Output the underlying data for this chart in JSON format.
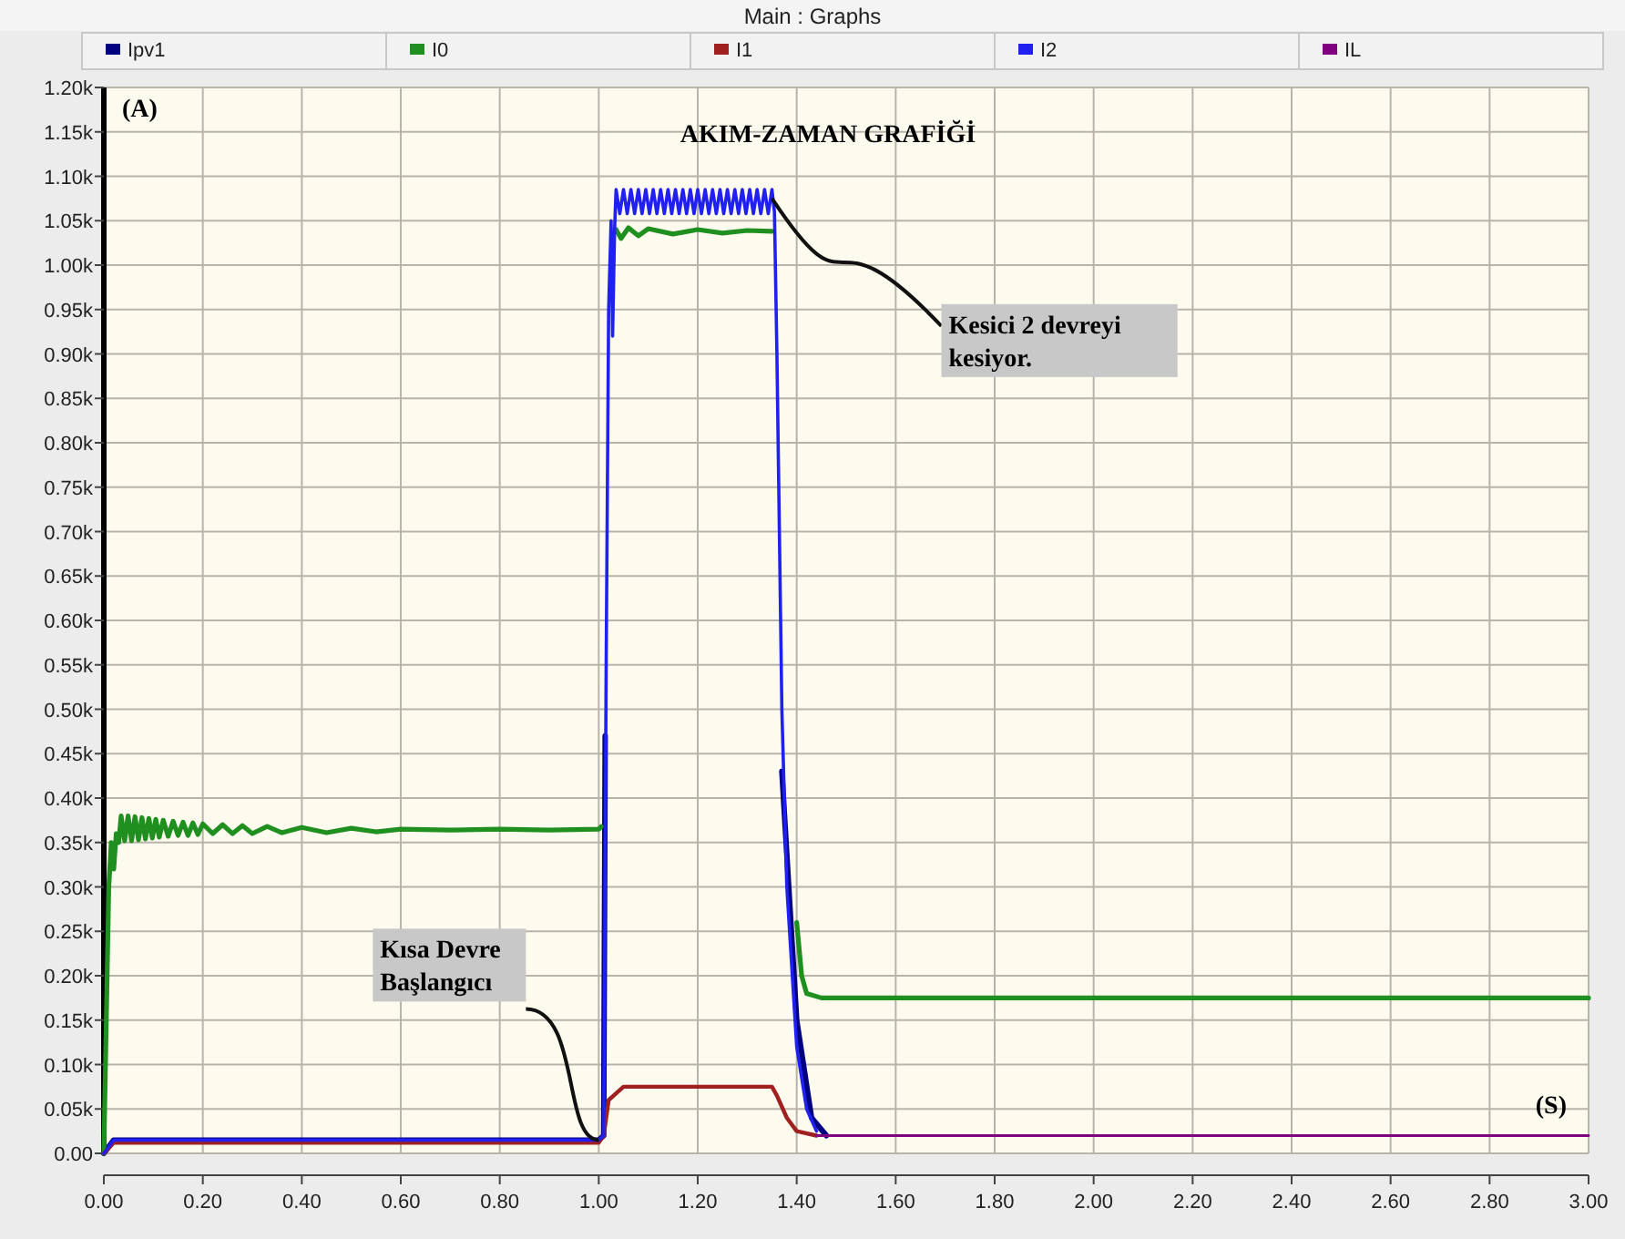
{
  "chart_data": {
    "type": "line",
    "title": "Main : Graphs",
    "subtitle": "AKIM-ZAMAN GRAFİĞİ",
    "xlabel": "(S)",
    "ylabel": "(A)",
    "xlim": [
      0,
      3
    ],
    "ylim": [
      0,
      1200
    ],
    "xticks": [
      {
        "value": 0,
        "label": "0.00"
      },
      {
        "value": 0.2,
        "label": "0.20"
      },
      {
        "value": 0.4,
        "label": "0.40"
      },
      {
        "value": 0.6,
        "label": "0.60"
      },
      {
        "value": 0.8,
        "label": "0.80"
      },
      {
        "value": 1,
        "label": "1.00"
      },
      {
        "value": 1.2,
        "label": "1.20"
      },
      {
        "value": 1.4,
        "label": "1.40"
      },
      {
        "value": 1.6,
        "label": "1.60"
      },
      {
        "value": 1.8,
        "label": "1.80"
      },
      {
        "value": 2,
        "label": "2.00"
      },
      {
        "value": 2.2,
        "label": "2.20"
      },
      {
        "value": 2.4,
        "label": "2.40"
      },
      {
        "value": 2.6,
        "label": "2.60"
      },
      {
        "value": 2.8,
        "label": "2.80"
      },
      {
        "value": 3,
        "label": "3.00"
      }
    ],
    "yticks": [
      {
        "value": 0,
        "label": "0.00"
      },
      {
        "value": 50,
        "label": "0.05k"
      },
      {
        "value": 100,
        "label": "0.10k"
      },
      {
        "value": 150,
        "label": "0.15k"
      },
      {
        "value": 200,
        "label": "0.20k"
      },
      {
        "value": 250,
        "label": "0.25k"
      },
      {
        "value": 300,
        "label": "0.30k"
      },
      {
        "value": 350,
        "label": "0.35k"
      },
      {
        "value": 400,
        "label": "0.40k"
      },
      {
        "value": 450,
        "label": "0.45k"
      },
      {
        "value": 500,
        "label": "0.50k"
      },
      {
        "value": 550,
        "label": "0.55k"
      },
      {
        "value": 600,
        "label": "0.60k"
      },
      {
        "value": 650,
        "label": "0.65k"
      },
      {
        "value": 700,
        "label": "0.70k"
      },
      {
        "value": 750,
        "label": "0.75k"
      },
      {
        "value": 800,
        "label": "0.80k"
      },
      {
        "value": 850,
        "label": "0.85k"
      },
      {
        "value": 900,
        "label": "0.90k"
      },
      {
        "value": 950,
        "label": "0.95k"
      },
      {
        "value": 1000,
        "label": "1.00k"
      },
      {
        "value": 1050,
        "label": "1.05k"
      },
      {
        "value": 1100,
        "label": "1.10k"
      },
      {
        "value": 1150,
        "label": "1.15k"
      },
      {
        "value": 1200,
        "label": "1.20k"
      }
    ],
    "grid": true,
    "legend": "top",
    "marker": "none",
    "line_style": "solid",
    "series": [
      {
        "name": "Ipv1",
        "color": "#000080",
        "x": [
          0,
          0.02,
          0.33,
          1.0,
          1.01,
          1.013,
          1.02,
          1.37,
          1.4,
          1.43,
          1.46
        ],
        "values": [
          0,
          15,
          15,
          15,
          20,
          470,
          null,
          430,
          150,
          40,
          20
        ]
      },
      {
        "name": "I0",
        "color": "#1f8f1f",
        "x": [
          0,
          0.005,
          0.01,
          0.015,
          0.02,
          0.025,
          0.03,
          0.035,
          0.042,
          0.049,
          0.056,
          0.063,
          0.07,
          0.077,
          0.084,
          0.091,
          0.098,
          0.105,
          0.112,
          0.12,
          0.13,
          0.14,
          0.15,
          0.16,
          0.17,
          0.18,
          0.19,
          0.2,
          0.22,
          0.24,
          0.26,
          0.28,
          0.3,
          0.33,
          0.36,
          0.4,
          0.45,
          0.5,
          0.55,
          0.6,
          0.7,
          0.8,
          0.9,
          1.0,
          1.005,
          1.015,
          1.03,
          1.035,
          1.045,
          1.06,
          1.08,
          1.1,
          1.15,
          1.2,
          1.25,
          1.3,
          1.35,
          1.37,
          1.4,
          1.41,
          1.42,
          1.45,
          3.0
        ],
        "values": [
          0,
          150,
          300,
          350,
          320,
          360,
          350,
          380,
          352,
          380,
          352,
          379,
          353,
          378,
          354,
          377,
          355,
          376,
          356,
          375,
          357,
          374,
          358,
          373,
          358,
          372,
          359,
          371,
          360,
          370,
          360,
          369,
          360,
          368,
          361,
          367,
          361,
          366,
          362,
          365,
          364,
          365,
          364,
          365,
          368,
          null,
          null,
          1040,
          1030,
          1042,
          1033,
          1041,
          1035,
          1040,
          1036,
          1039,
          1038,
          null,
          260,
          200,
          180,
          175,
          175
        ]
      },
      {
        "name": "I1",
        "color": "#a02020",
        "x": [
          0,
          0.02,
          1.0,
          1.01,
          1.02,
          1.03,
          1.05,
          1.35,
          1.36,
          1.38,
          1.4,
          1.44
        ],
        "values": [
          0,
          12,
          12,
          20,
          60,
          65,
          75,
          75,
          65,
          40,
          25,
          20
        ]
      },
      {
        "name": "I2",
        "color": "#2020f0",
        "x": [
          0,
          0.02,
          1.0,
          1.01,
          1.015,
          1.02,
          1.025,
          1.028,
          1.032,
          1.035,
          1.0425,
          1.05,
          1.0575,
          1.065,
          1.0725,
          1.08,
          1.0875,
          1.095,
          1.1025,
          1.11,
          1.1175,
          1.125,
          1.1325,
          1.14,
          1.1475,
          1.155,
          1.1625,
          1.17,
          1.1775,
          1.185,
          1.1925,
          1.2,
          1.2075,
          1.215,
          1.2225,
          1.23,
          1.2375,
          1.245,
          1.2525,
          1.26,
          1.2675,
          1.275,
          1.2825,
          1.29,
          1.2975,
          1.305,
          1.3125,
          1.32,
          1.3275,
          1.335,
          1.3425,
          1.35,
          1.355,
          1.36,
          1.37,
          1.38,
          1.4,
          1.42,
          1.44
        ],
        "values": [
          0,
          15,
          15,
          20,
          550,
          950,
          1050,
          920,
          1040,
          1085,
          1058,
          1085,
          1058,
          1085,
          1058,
          1085,
          1058,
          1085,
          1058,
          1085,
          1058,
          1085,
          1058,
          1085,
          1058,
          1085,
          1058,
          1085,
          1058,
          1085,
          1058,
          1085,
          1058,
          1085,
          1058,
          1085,
          1058,
          1085,
          1058,
          1085,
          1058,
          1085,
          1058,
          1085,
          1058,
          1085,
          1058,
          1085,
          1058,
          1085,
          1058,
          1085,
          1060,
          900,
          500,
          300,
          120,
          50,
          25
        ]
      },
      {
        "name": "IL",
        "color": "#800080",
        "x": [
          1.44,
          3.0
        ],
        "values": [
          20,
          20
        ]
      }
    ],
    "annotations": [
      {
        "text": "Kısa Devre Başlangıcı",
        "x": 1.0,
        "y": 15
      },
      {
        "text": "Kesici 2 devreyi kesiyor.",
        "x": 1.35,
        "y": 1075
      }
    ]
  }
}
